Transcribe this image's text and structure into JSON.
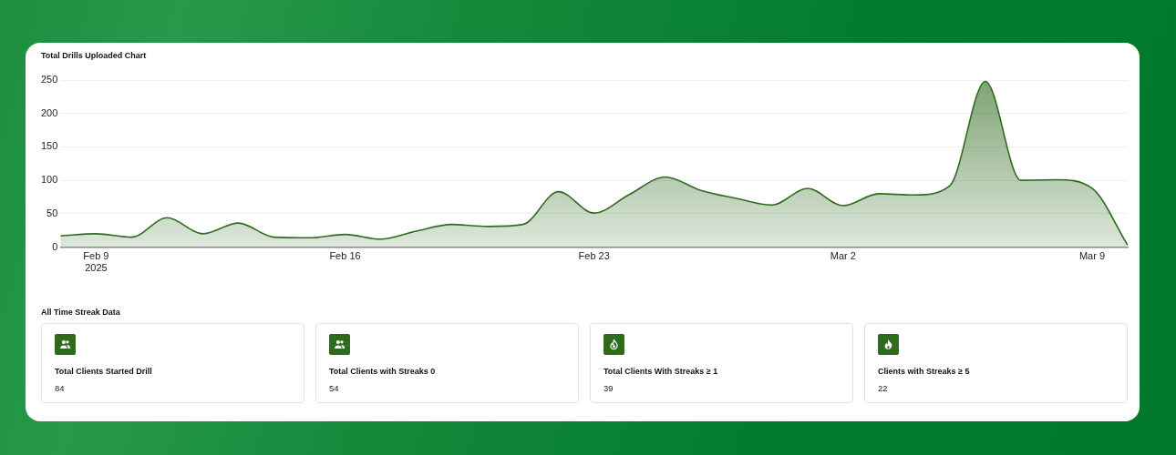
{
  "chart_data": [
    {
      "type": "area",
      "title": "Total Drills Uploaded Chart",
      "x": [
        "2025-02-08",
        "2025-02-09",
        "2025-02-10",
        "2025-02-11",
        "2025-02-12",
        "2025-02-13",
        "2025-02-14",
        "2025-02-15",
        "2025-02-16",
        "2025-02-17",
        "2025-02-18",
        "2025-02-19",
        "2025-02-20",
        "2025-02-21",
        "2025-02-22",
        "2025-02-23",
        "2025-02-24",
        "2025-02-25",
        "2025-02-26",
        "2025-02-27",
        "2025-02-28",
        "2025-03-01",
        "2025-03-02",
        "2025-03-03",
        "2025-03-04",
        "2025-03-05",
        "2025-03-06",
        "2025-03-07",
        "2025-03-08",
        "2025-03-09",
        "2025-03-10"
      ],
      "series": [
        {
          "color": "#2f6b1f",
          "values": [
            17,
            20,
            15,
            44,
            20,
            36,
            15,
            14,
            19,
            12,
            24,
            34,
            31,
            34,
            83,
            51,
            79,
            105,
            85,
            73,
            63,
            88,
            62,
            80,
            78,
            92,
            248,
            100,
            101,
            88,
            3
          ]
        }
      ],
      "xlim": [
        "2025-02-08",
        "2025-03-10"
      ],
      "xticks": [
        {
          "value": "2025-02-09",
          "label": "Feb 9\n2025"
        },
        {
          "value": "2025-02-16",
          "label": "Feb 16"
        },
        {
          "value": "2025-02-23",
          "label": "Feb 23"
        },
        {
          "value": "2025-03-02",
          "label": "Mar 2"
        },
        {
          "value": "2025-03-09",
          "label": "Mar 9"
        }
      ],
      "ylim": [
        0,
        250
      ],
      "yticks": [
        0,
        50,
        100,
        150,
        200,
        250
      ],
      "grid": "y",
      "marker": "none"
    },
    {
      "type": "other",
      "title": "All Time Streak Data",
      "categories": [
        "Total Clients Started Drill",
        "Total Clients with Streaks 0",
        "Total Clients With Streaks ≥ 1",
        "Clients with Streaks ≥ 5"
      ],
      "values": [
        84,
        54,
        39,
        22
      ],
      "data_labels": true
    }
  ]
}
